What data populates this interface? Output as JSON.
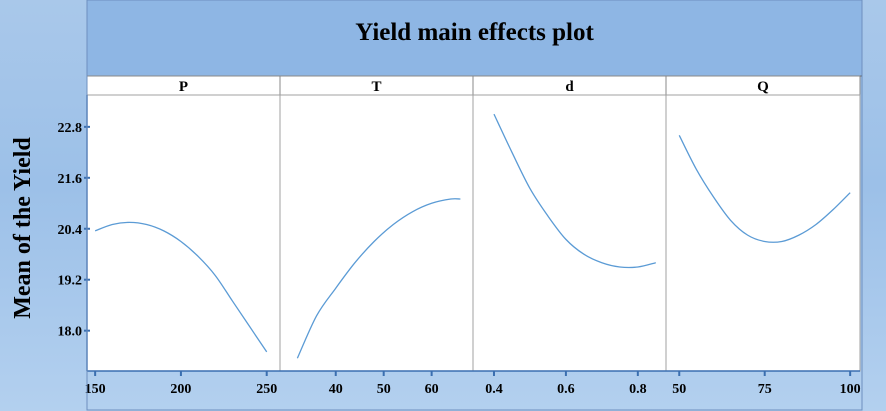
{
  "chart_data": {
    "type": "line",
    "title": "Yield main effects plot",
    "ylabel": "Mean of the Yield",
    "ylim": [
      17.05,
      23.55
    ],
    "y_ticks": [
      18.0,
      19.2,
      20.4,
      21.6,
      22.8
    ],
    "y_tick_labels": [
      "18.0",
      "19.2",
      "20.4",
      "21.6",
      "22.8"
    ],
    "grid": false,
    "line_color": "#5b9bd5",
    "panels": [
      {
        "name": "P",
        "xlim": [
          147,
          256
        ],
        "x_ticks": [
          150,
          200,
          250
        ],
        "x_tick_labels": [
          "150",
          "200",
          "250"
        ],
        "x": [
          150,
          160,
          170,
          180,
          190,
          200,
          210,
          220,
          230,
          240,
          250
        ],
        "y": [
          20.35,
          20.5,
          20.55,
          20.5,
          20.35,
          20.1,
          19.75,
          19.3,
          18.7,
          18.1,
          17.5
        ]
      },
      {
        "name": "T",
        "xlim": [
          29,
          68
        ],
        "x_ticks": [
          40,
          50,
          60
        ],
        "x_tick_labels": [
          "40",
          "50",
          "60"
        ],
        "x": [
          32,
          36,
          40,
          44,
          48,
          52,
          56,
          60,
          64,
          66
        ],
        "y": [
          17.35,
          18.35,
          19.0,
          19.6,
          20.1,
          20.5,
          20.8,
          21.0,
          21.1,
          21.1
        ]
      },
      {
        "name": "d",
        "xlim": [
          0.35,
          0.87
        ],
        "x_ticks": [
          0.4,
          0.6,
          0.8
        ],
        "x_tick_labels": [
          "0.4",
          "0.6",
          "0.8"
        ],
        "x": [
          0.4,
          0.45,
          0.5,
          0.55,
          0.6,
          0.65,
          0.7,
          0.75,
          0.8,
          0.85
        ],
        "y": [
          23.1,
          22.2,
          21.35,
          20.7,
          20.15,
          19.8,
          19.6,
          19.5,
          19.5,
          19.6
        ]
      },
      {
        "name": "Q",
        "xlim": [
          47,
          102
        ],
        "x_ticks": [
          50,
          75,
          100
        ],
        "x_tick_labels": [
          "50",
          "75",
          "100"
        ],
        "x": [
          50,
          55,
          60,
          65,
          70,
          75,
          80,
          85,
          90,
          95,
          100
        ],
        "y": [
          22.6,
          21.8,
          21.15,
          20.6,
          20.25,
          20.1,
          20.1,
          20.25,
          20.5,
          20.85,
          21.25
        ]
      }
    ]
  }
}
